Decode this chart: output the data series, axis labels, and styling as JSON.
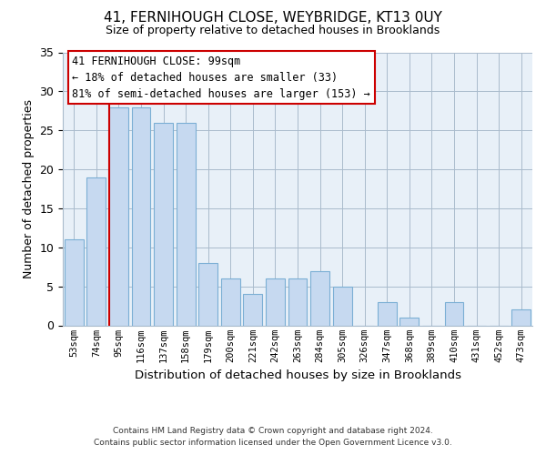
{
  "title": "41, FERNIHOUGH CLOSE, WEYBRIDGE, KT13 0UY",
  "subtitle": "Size of property relative to detached houses in Brooklands",
  "xlabel": "Distribution of detached houses by size in Brooklands",
  "ylabel": "Number of detached properties",
  "bar_labels": [
    "53sqm",
    "74sqm",
    "95sqm",
    "116sqm",
    "137sqm",
    "158sqm",
    "179sqm",
    "200sqm",
    "221sqm",
    "242sqm",
    "263sqm",
    "284sqm",
    "305sqm",
    "326sqm",
    "347sqm",
    "368sqm",
    "389sqm",
    "410sqm",
    "431sqm",
    "452sqm",
    "473sqm"
  ],
  "bar_values": [
    11,
    19,
    28,
    28,
    26,
    26,
    8,
    6,
    4,
    6,
    6,
    7,
    5,
    0,
    3,
    1,
    0,
    3,
    0,
    0,
    2
  ],
  "bar_color": "#c6d9f0",
  "bar_edge_color": "#7bafd4",
  "vline_x_index": 2,
  "vline_color": "#cc0000",
  "annotation_line1": "41 FERNIHOUGH CLOSE: 99sqm",
  "annotation_line2": "← 18% of detached houses are smaller (33)",
  "annotation_line3": "81% of semi-detached houses are larger (153) →",
  "annotation_box_color": "#ffffff",
  "annotation_box_edge": "#cc0000",
  "ylim": [
    0,
    35
  ],
  "yticks": [
    0,
    5,
    10,
    15,
    20,
    25,
    30,
    35
  ],
  "plot_bg_color": "#e8f0f8",
  "fig_bg_color": "#ffffff",
  "grid_color": "#aabbcc",
  "footer_line1": "Contains HM Land Registry data © Crown copyright and database right 2024.",
  "footer_line2": "Contains public sector information licensed under the Open Government Licence v3.0."
}
